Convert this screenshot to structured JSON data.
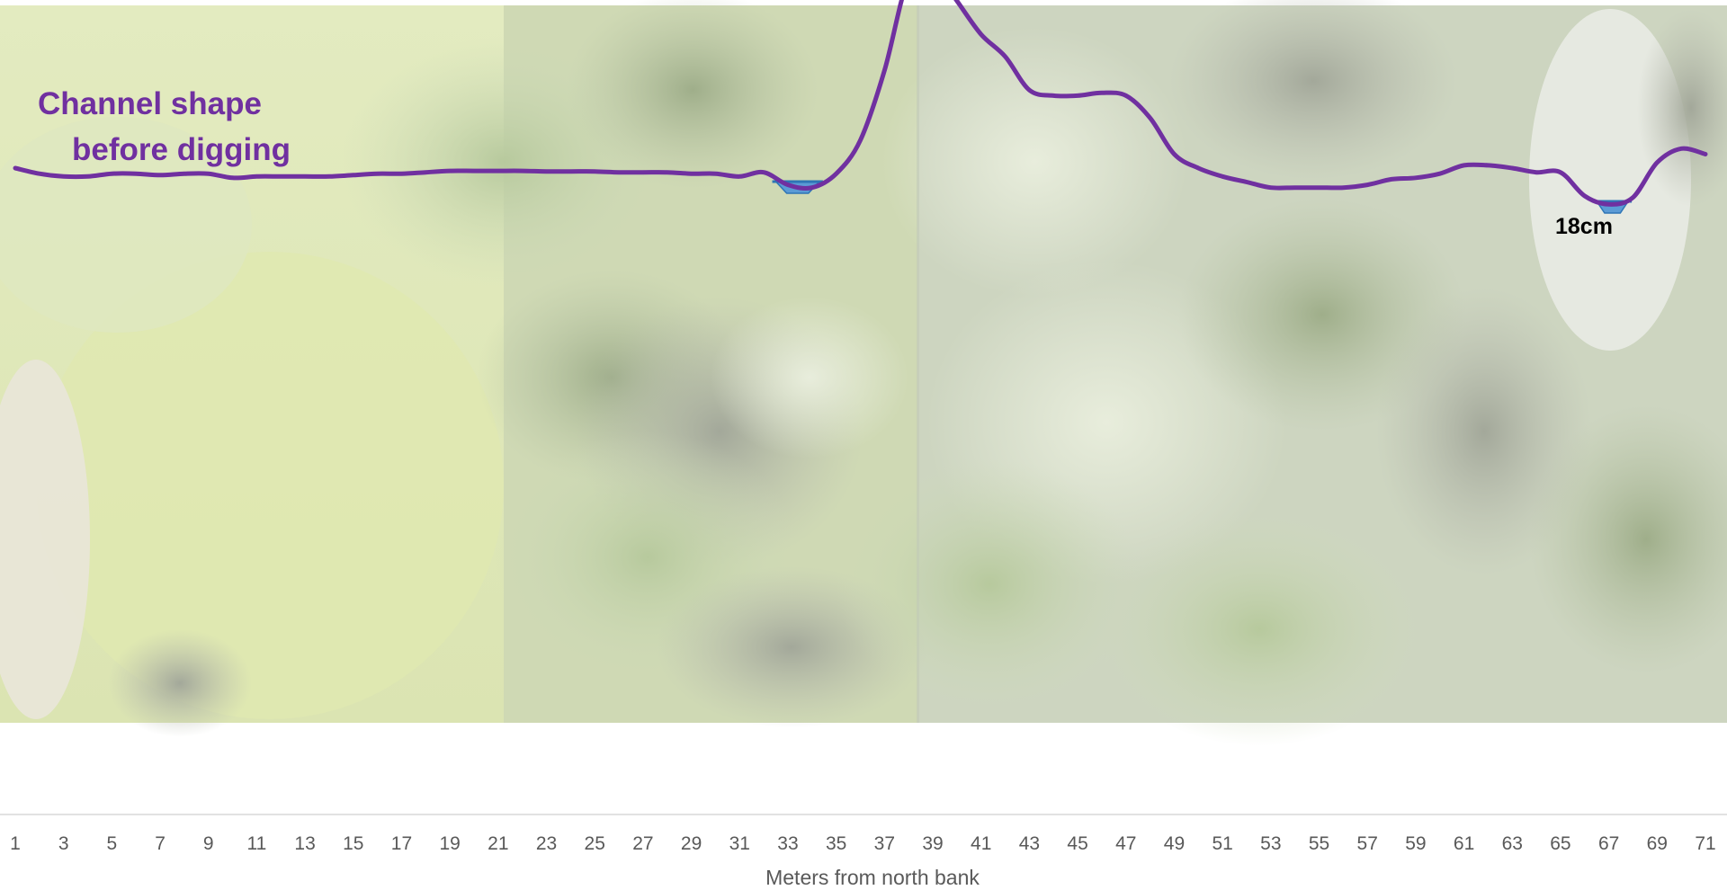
{
  "chart_data": {
    "type": "line",
    "title": "",
    "xlabel": "Meters from north bank",
    "ylabel": "",
    "x_tick_labels": [
      "1",
      "3",
      "5",
      "7",
      "9",
      "11",
      "13",
      "15",
      "17",
      "19",
      "21",
      "23",
      "25",
      "27",
      "29",
      "31",
      "33",
      "35",
      "37",
      "39",
      "41",
      "43",
      "45",
      "47",
      "49",
      "51",
      "53",
      "55",
      "57",
      "59",
      "61",
      "63",
      "65",
      "67",
      "69",
      "71"
    ],
    "background": "aerial photograph of tree canopy (faded)",
    "grid": false,
    "series": [
      {
        "name": "Channel shape before digging",
        "color": "#7030a0",
        "x": [
          1,
          2,
          3,
          4,
          5,
          6,
          7,
          8,
          9,
          10,
          11,
          12,
          13,
          14,
          15,
          16,
          17,
          18,
          19,
          20,
          21,
          22,
          23,
          24,
          25,
          26,
          27,
          28,
          29,
          30,
          31,
          32,
          33,
          34,
          35,
          36,
          37,
          38,
          39,
          40,
          41,
          42,
          43,
          44,
          45,
          46,
          47,
          48,
          49,
          50,
          51,
          52,
          53,
          54,
          55,
          56,
          57,
          58,
          59,
          60,
          61,
          62,
          63,
          64,
          65,
          66,
          67,
          68,
          69,
          70,
          71
        ],
        "y": [
          0.0,
          -0.2,
          -0.3,
          -0.3,
          -0.2,
          -0.2,
          -0.25,
          -0.2,
          -0.2,
          -0.35,
          -0.3,
          -0.3,
          -0.3,
          -0.3,
          -0.25,
          -0.2,
          -0.2,
          -0.15,
          -0.1,
          -0.1,
          -0.1,
          -0.1,
          -0.12,
          -0.12,
          -0.12,
          -0.15,
          -0.15,
          -0.15,
          -0.2,
          -0.2,
          -0.3,
          -0.15,
          -0.6,
          -0.7,
          -0.2,
          1.0,
          3.5,
          6.8,
          7.2,
          6.0,
          4.8,
          4.0,
          2.8,
          2.6,
          2.6,
          2.7,
          2.6,
          1.8,
          0.5,
          0.0,
          -0.3,
          -0.5,
          -0.7,
          -0.7,
          -0.7,
          -0.7,
          -0.6,
          -0.4,
          -0.35,
          -0.2,
          0.1,
          0.1,
          0.0,
          -0.15,
          -0.15,
          -1.0,
          -1.3,
          -1.05,
          0.2,
          0.7,
          0.5
        ]
      }
    ],
    "water_levels": [
      {
        "x_from": 32.5,
        "x_to": 34.3
      },
      {
        "x_from": 66.5,
        "x_to": 67.8
      }
    ],
    "annotations": [
      {
        "text": "18cm",
        "x": 66.3
      }
    ],
    "legend_placement": "top-left"
  }
}
